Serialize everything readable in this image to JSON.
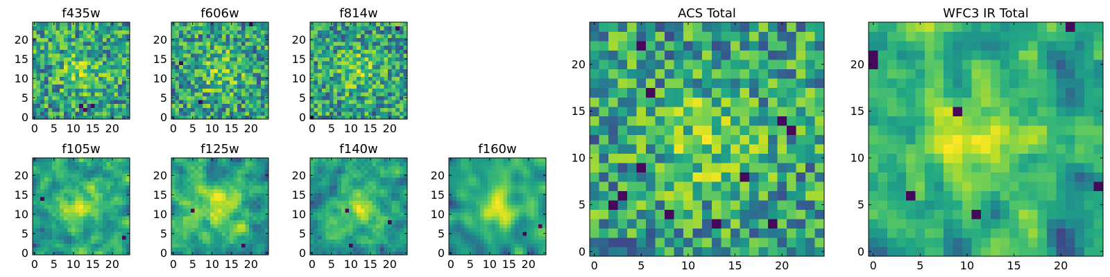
{
  "colors": {
    "colormap": "viridis",
    "frame": "#000000",
    "background": "#ffffff"
  },
  "chart_data": [
    {
      "type": "heatmap",
      "title": "f435w",
      "grid": false,
      "xlim": [
        0,
        25
      ],
      "ylim": [
        0,
        25
      ],
      "x_ticks": [
        "0",
        "5",
        "10",
        "15",
        "20"
      ],
      "y_ticks": [
        "0",
        "5",
        "10",
        "15",
        "20"
      ],
      "seed": 11,
      "smooth": 0,
      "dark_spots": [
        [
          12,
          3
        ],
        [
          13,
          2
        ],
        [
          15,
          3
        ]
      ]
    },
    {
      "type": "heatmap",
      "title": "f606w",
      "grid": false,
      "xlim": [
        0,
        25
      ],
      "ylim": [
        0,
        25
      ],
      "x_ticks": [
        "0",
        "5",
        "10",
        "15",
        "20"
      ],
      "y_ticks": [
        "0",
        "5",
        "10",
        "15",
        "20"
      ],
      "seed": 23,
      "smooth": 0,
      "dark_spots": [
        [
          20,
          24
        ],
        [
          2,
          14
        ],
        [
          7,
          4
        ]
      ]
    },
    {
      "type": "heatmap",
      "title": "f814w",
      "grid": false,
      "xlim": [
        0,
        25
      ],
      "ylim": [
        0,
        25
      ],
      "x_ticks": [
        "0",
        "5",
        "10",
        "15",
        "20"
      ],
      "y_ticks": [
        "0",
        "5",
        "10",
        "15",
        "20"
      ],
      "seed": 37,
      "smooth": 0,
      "dark_spots": [
        [
          0,
          0
        ],
        [
          22,
          23
        ]
      ]
    },
    {
      "type": "heatmap",
      "title": "f105w",
      "grid": false,
      "xlim": [
        0,
        25
      ],
      "ylim": [
        0,
        25
      ],
      "x_ticks": [
        "0",
        "5",
        "10",
        "15",
        "20"
      ],
      "y_ticks": [
        "0",
        "5",
        "10",
        "15",
        "20"
      ],
      "seed": 41,
      "smooth": 1,
      "dark_spots": [
        [
          2,
          14
        ],
        [
          23,
          4
        ]
      ]
    },
    {
      "type": "heatmap",
      "title": "f125w",
      "grid": false,
      "xlim": [
        0,
        25
      ],
      "ylim": [
        0,
        25
      ],
      "x_ticks": [
        "0",
        "5",
        "10",
        "15",
        "20"
      ],
      "y_ticks": [
        "0",
        "5",
        "10",
        "15",
        "20"
      ],
      "seed": 53,
      "smooth": 1,
      "dark_spots": [
        [
          5,
          11
        ],
        [
          18,
          2
        ]
      ]
    },
    {
      "type": "heatmap",
      "title": "f140w",
      "grid": false,
      "xlim": [
        0,
        25
      ],
      "ylim": [
        0,
        25
      ],
      "x_ticks": [
        "0",
        "5",
        "10",
        "15",
        "20"
      ],
      "y_ticks": [
        "0",
        "5",
        "10",
        "15",
        "20"
      ],
      "seed": 67,
      "smooth": 1,
      "dark_spots": [
        [
          20,
          8
        ],
        [
          9,
          11
        ],
        [
          10,
          2
        ]
      ]
    },
    {
      "type": "heatmap",
      "title": "f160w",
      "grid": false,
      "xlim": [
        0,
        25
      ],
      "ylim": [
        0,
        25
      ],
      "x_ticks": [
        "0",
        "5",
        "10",
        "15",
        "20"
      ],
      "y_ticks": [
        "0",
        "5",
        "10",
        "15",
        "20"
      ],
      "seed": 79,
      "smooth": 2,
      "dark_spots": [
        [
          23,
          7
        ],
        [
          19,
          5
        ]
      ]
    },
    {
      "type": "heatmap",
      "title": "ACS Total",
      "grid": false,
      "xlim": [
        0,
        25
      ],
      "ylim": [
        0,
        25
      ],
      "x_ticks": [
        "0",
        "5",
        "10",
        "15",
        "20"
      ],
      "y_ticks": [
        "0",
        "5",
        "10",
        "15",
        "20"
      ],
      "seed": 97,
      "smooth": 0,
      "dark_spots": [
        [
          5,
          22
        ],
        [
          6,
          17
        ],
        [
          20,
          14
        ],
        [
          21,
          13
        ],
        [
          5,
          9
        ],
        [
          16,
          8
        ],
        [
          3,
          6
        ],
        [
          2,
          5
        ],
        [
          8,
          4
        ],
        [
          13,
          3
        ],
        [
          19,
          3
        ]
      ]
    },
    {
      "type": "heatmap",
      "title": "WFC3 IR Total",
      "grid": false,
      "xlim": [
        0,
        25
      ],
      "ylim": [
        0,
        25
      ],
      "x_ticks": [
        "0",
        "5",
        "10",
        "15",
        "20"
      ],
      "y_ticks": [
        "0",
        "5",
        "10",
        "15",
        "20"
      ],
      "seed": 131,
      "smooth": 1,
      "dark_spots": [
        [
          21,
          24
        ],
        [
          0,
          21
        ],
        [
          0,
          20
        ],
        [
          9,
          15
        ],
        [
          24,
          7
        ],
        [
          4,
          6
        ],
        [
          11,
          4
        ]
      ]
    }
  ]
}
